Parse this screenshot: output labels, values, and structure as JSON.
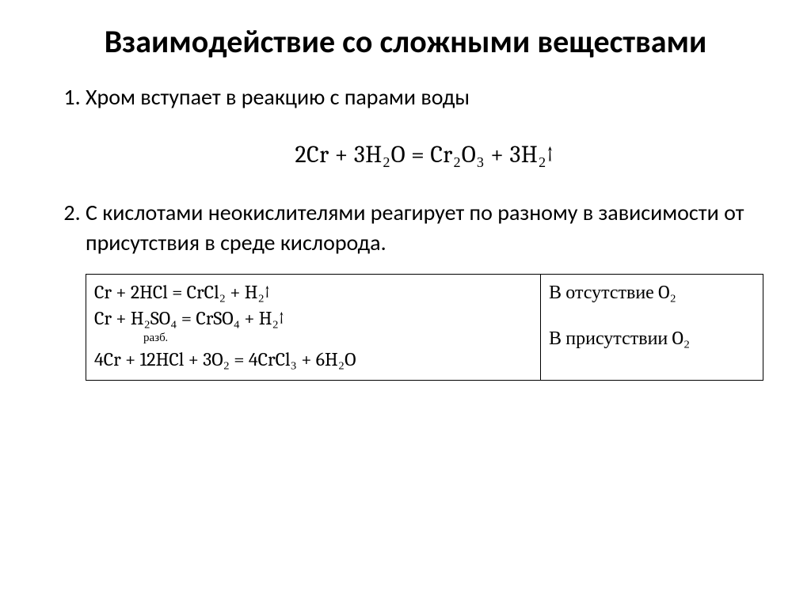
{
  "title": "Взаимодействие со сложными веществами",
  "items": {
    "p1": "Хром вступает в реакцию с парами воды",
    "p2": "С кислотами неокислителями реагирует по разному в зависимости от присутствия в среде кислорода."
  },
  "equation_center": "2Cr + 3H₂O = Cr₂O₃ + 3H₂↑",
  "table": {
    "rx1": "Cr + 2HCl = CrCl₂ + H₂↑",
    "rx2": "Cr +  H₂SO₄ = CrSO₄ + H₂↑",
    "rx2_annot": "разб.",
    "rx3": "4Cr + 12HCl + 3O₂ = 4CrCl₃ + 6H₂O",
    "cond1": "В отсутствие O₂",
    "cond2": "В присутствии O₂",
    "border_color": "#000000",
    "font_family_formula": "Cambria, Georgia, Times New Roman, serif"
  },
  "style": {
    "bg": "#ffffff",
    "text": "#000000",
    "title_fontsize": 40,
    "body_fontsize": 28,
    "eq_fontsize": 30,
    "table_fontsize": 24
  }
}
